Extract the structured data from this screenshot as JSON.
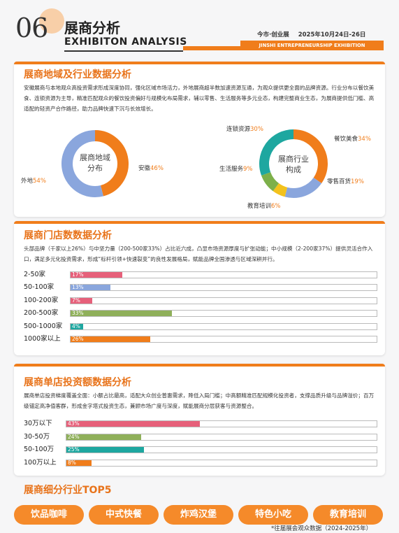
{
  "header": {
    "number": "06",
    "title": "展商分析",
    "subtitle": "EXHIBITON ANALYSIS",
    "meta_left": "今市·创业展",
    "meta_right": "2025年10月24日-26日",
    "band": "JINSHI ENTREPRENEURSHIP EXHIBITION"
  },
  "section1": {
    "title": "展商地域及行业数据分析",
    "text": "安徽展商与本地观众高投资需求形成深度协同，强化区域市场活力，外地展商超半数加速资源互通，为观众提供更全面的品牌资源。行业分布以餐饮美食、连锁资源为主导，精准匹配观众的餐饮投资偏好与规模化布局需求，辅以零售、生活服务等多元业态，构建完整商业生态，为展商提供低门槛、高适配的轻资产合作路径，助力品牌快速下沉与长效增长。",
    "region_center": [
      "展商地域",
      "分布"
    ],
    "industry_center": [
      "展商行业",
      "构成"
    ]
  },
  "chart_data": [
    {
      "type": "pie",
      "title": "展商地域分布",
      "slices": [
        {
          "name": "安徽",
          "value": 46,
          "color": "#f07d1b"
        },
        {
          "name": "外地",
          "value": 54,
          "color": "#8aa6dd"
        }
      ]
    },
    {
      "type": "pie",
      "title": "展商行业构成",
      "slices": [
        {
          "name": "餐饮美食",
          "value": 34,
          "color": "#f07d1b"
        },
        {
          "name": "零售百货",
          "value": 19,
          "color": "#8aa6dd"
        },
        {
          "name": "教育培训",
          "value": 6,
          "color": "#f3c21c"
        },
        {
          "name": "生活服务",
          "value": 9,
          "color": "#7db04a"
        },
        {
          "name": "连锁资源",
          "value": 30,
          "color": "#1ea7a0"
        }
      ]
    },
    {
      "type": "bar",
      "title": "展商门店数数据分析",
      "categories": [
        "2-50家",
        "50-100家",
        "100-200家",
        "200-500家",
        "500-1000家",
        "1000家以上"
      ],
      "values": [
        17,
        13,
        7,
        33,
        4,
        26
      ],
      "labels": [
        "17%",
        "13%",
        "7%",
        "33%",
        "4%",
        "26%"
      ],
      "colors": [
        "#e6607a",
        "#8aa6dd",
        "#e6607a",
        "#8fb05a",
        "#1ea7a0",
        "#f07d1b"
      ],
      "xlim": [
        0,
        100
      ]
    },
    {
      "type": "bar",
      "title": "展商单店投资额数据分析",
      "categories": [
        "30万以下",
        "30-50万",
        "50-100万",
        "100万以上"
      ],
      "values": [
        43,
        24,
        25,
        8
      ],
      "labels": [
        "43%",
        "24%",
        "25%",
        "8%"
      ],
      "colors": [
        "#e6607a",
        "#8fb05a",
        "#1ea7a0",
        "#f07d1b"
      ],
      "xlim": [
        0,
        100
      ]
    }
  ],
  "labels": {
    "region": {
      "anhui_name": "安徽",
      "anhui_val": "46%",
      "other_name": "外地",
      "other_val": "54%"
    },
    "industry": {
      "food_name": "餐饮美食",
      "food_val": "34%",
      "retail_name": "零售百货",
      "retail_val": "19%",
      "edu_name": "教育培训",
      "edu_val": "6%",
      "life_name": "生活服务",
      "life_val": "9%",
      "chain_name": "连锁资源",
      "chain_val": "30%"
    }
  },
  "section2": {
    "title": "展商门店数数据分析",
    "text": "头部品牌（千家以上26%）与中坚力量（200-500家33%）占比近六成，凸显市场资源厚度与扩张动能；中小规模（2-200家37%）提供灵活合作入口，满足多元化投资需求，形成“标杆引领+快速裂变”的良性发展格局，赋能品牌全国渗透与区域深耕并行。"
  },
  "section3": {
    "title": "展商单店投资额数据分析",
    "text": "展商单店投资梯度覆盖全面：小额占比最高，适配大众创业普惠需求，降低入局门槛；中高额精准匹配规模化投资者，支撑品质升级与品牌溢价；百万级锚定高净值客群，形成金字塔式投资生态，兼顾市场广度与深度，赋能展商分层获客与资源整合。"
  },
  "top5": {
    "title": "展商细分行业TOP5",
    "items": [
      "饮品咖啡",
      "中式快餐",
      "炸鸡汉堡",
      "特色小吃",
      "教育培训"
    ]
  },
  "footnote": "*往届展会观众数据（2024-2025年）"
}
